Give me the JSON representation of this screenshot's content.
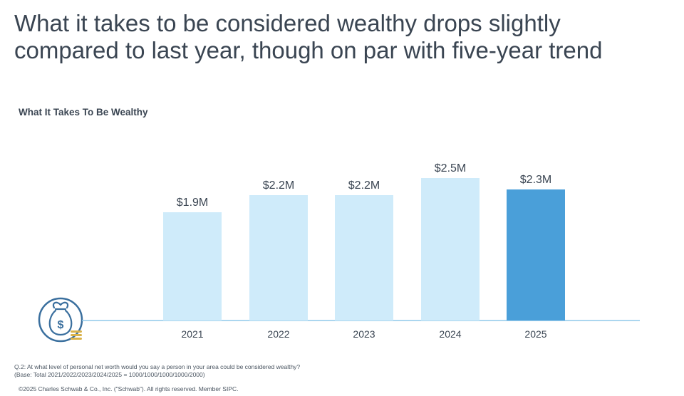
{
  "headline": {
    "line1": "What it takes to be considered wealthy drops slightly",
    "line2": "compared to last year, though on par with five-year trend"
  },
  "footnote": {
    "question": "Q.2:  At what level of personal net worth would you say a person in your area could be considered wealthy?",
    "base": "(Base: Total 2021/2022/2023/2024/2025 = 1000/1000/1000/1000/2000)"
  },
  "copyright": "©2025 Charles Schwab & Co., Inc. (\"Schwab\"). All rights reserved. Member SIPC.",
  "icon": "money-bag-dollar-icon",
  "colors": {
    "bar_light": "#cfebfa",
    "bar_highlight": "#4a9fd9",
    "axis": "#8fc9ea",
    "icon": "#3a6f9e",
    "coins": "#d9b24a"
  },
  "chart_data": {
    "type": "bar",
    "title": "What It Takes To Be Wealthy",
    "categories": [
      "2021",
      "2022",
      "2023",
      "2024",
      "2025"
    ],
    "values": [
      1.9,
      2.2,
      2.2,
      2.5,
      2.3
    ],
    "data_labels": [
      "$1.9M",
      "$2.2M",
      "$2.2M",
      "$2.5M",
      "$2.3M"
    ],
    "unit": "$M",
    "highlight_category": "2025",
    "ylim": [
      0,
      2.5
    ],
    "grid": false,
    "legend": "none",
    "xlabel": "",
    "ylabel": ""
  }
}
